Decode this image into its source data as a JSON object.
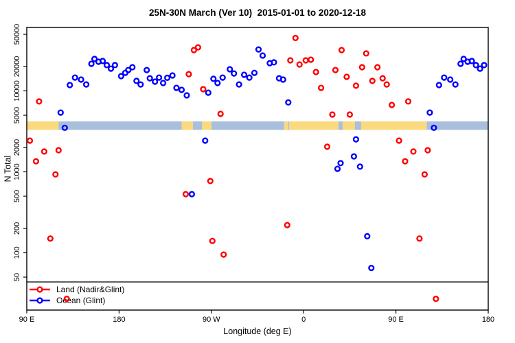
{
  "chart_data": {
    "type": "scatter",
    "title": "25N-30N March (Ver 10)  2015-01-01 to 2020-12-18",
    "xlabel": "Longitude (deg E)",
    "ylabel": "N Total",
    "x_range": [
      90,
      540
    ],
    "y_log": true,
    "y_range": [
      20,
      63000
    ],
    "grid": false,
    "legend_position": "bottom-left-inside",
    "x_ticks": [
      {
        "value": 90,
        "label": "90 E"
      },
      {
        "value": 180,
        "label": "180"
      },
      {
        "value": 270,
        "label": "90 W"
      },
      {
        "value": 360,
        "label": "0"
      },
      {
        "value": 450,
        "label": "90 E"
      },
      {
        "value": 540,
        "label": "180"
      }
    ],
    "y_ticks": [
      {
        "value": 50000,
        "label": "50000"
      },
      {
        "value": 20000,
        "label": "20000"
      },
      {
        "value": 10000,
        "label": "10000"
      },
      {
        "value": 5000,
        "label": "5000"
      },
      {
        "value": 2000,
        "label": "2000"
      },
      {
        "value": 1000,
        "label": "1000"
      },
      {
        "value": 500,
        "label": "500"
      },
      {
        "value": 200,
        "label": "200"
      },
      {
        "value": 100,
        "label": "100"
      },
      {
        "value": 50,
        "label": "50"
      }
    ],
    "series": [
      {
        "name": "Land (Nadir&Glint)",
        "color": "#ff0000",
        "points": [
          [
            93,
            2430
          ],
          [
            99,
            1350
          ],
          [
            102,
            7400
          ],
          [
            107,
            1780
          ],
          [
            113,
            150
          ],
          [
            118,
            930
          ],
          [
            121,
            1850
          ],
          [
            129,
            27
          ],
          [
            245,
            530
          ],
          [
            248,
            16100
          ],
          [
            253,
            31900
          ],
          [
            257,
            34500
          ],
          [
            262,
            10500
          ],
          [
            269,
            770
          ],
          [
            271,
            140
          ],
          [
            279,
            5200
          ],
          [
            282,
            95
          ],
          [
            344,
            220
          ],
          [
            347,
            23800
          ],
          [
            352,
            45000
          ],
          [
            356,
            21200
          ],
          [
            362,
            23800
          ],
          [
            367,
            24300
          ],
          [
            372,
            17100
          ],
          [
            377,
            10900
          ],
          [
            383,
            2040
          ],
          [
            388,
            5100
          ],
          [
            391,
            18100
          ],
          [
            397,
            31900
          ],
          [
            402,
            14900
          ],
          [
            405,
            5100
          ],
          [
            411,
            11600
          ],
          [
            417,
            19600
          ],
          [
            421,
            29000
          ],
          [
            427,
            13300
          ],
          [
            432,
            19600
          ],
          [
            437,
            14300
          ],
          [
            441,
            12000
          ],
          [
            446,
            6700
          ],
          [
            453,
            2430
          ],
          [
            459,
            1350
          ],
          [
            462,
            7400
          ],
          [
            467,
            1780
          ],
          [
            473,
            150
          ],
          [
            478,
            930
          ],
          [
            481,
            1850
          ],
          [
            489,
            27
          ]
        ]
      },
      {
        "name": "Ocean (Glint)",
        "color": "#0000ff",
        "points": [
          [
            123,
            5400
          ],
          [
            127,
            3500
          ],
          [
            132,
            11800
          ],
          [
            137,
            14600
          ],
          [
            143,
            13800
          ],
          [
            148,
            12000
          ],
          [
            153,
            21600
          ],
          [
            156,
            24800
          ],
          [
            160,
            22900
          ],
          [
            164,
            23400
          ],
          [
            168,
            20800
          ],
          [
            172,
            18800
          ],
          [
            176,
            20800
          ],
          [
            182,
            15200
          ],
          [
            186,
            16700
          ],
          [
            189,
            18100
          ],
          [
            193,
            19600
          ],
          [
            197,
            13300
          ],
          [
            201,
            12000
          ],
          [
            207,
            18100
          ],
          [
            210,
            14300
          ],
          [
            215,
            13000
          ],
          [
            219,
            14600
          ],
          [
            223,
            12500
          ],
          [
            227,
            14500
          ],
          [
            232,
            15500
          ],
          [
            236,
            10900
          ],
          [
            241,
            10300
          ],
          [
            246,
            8800
          ],
          [
            251,
            530
          ],
          [
            264,
            2430
          ],
          [
            267,
            9500
          ],
          [
            272,
            14100
          ],
          [
            276,
            12500
          ],
          [
            281,
            14600
          ],
          [
            288,
            18500
          ],
          [
            292,
            16400
          ],
          [
            297,
            12000
          ],
          [
            302,
            15800
          ],
          [
            307,
            14600
          ],
          [
            312,
            16700
          ],
          [
            316,
            32500
          ],
          [
            320,
            27300
          ],
          [
            327,
            22000
          ],
          [
            331,
            22500
          ],
          [
            336,
            14300
          ],
          [
            340,
            13800
          ],
          [
            345,
            7200
          ],
          [
            393,
            1090
          ],
          [
            396,
            1280
          ],
          [
            409,
            1550
          ],
          [
            411,
            2520
          ],
          [
            415,
            1160
          ],
          [
            422,
            160
          ],
          [
            426,
            65
          ],
          [
            483,
            5400
          ],
          [
            487,
            3500
          ],
          [
            492,
            11800
          ],
          [
            497,
            14600
          ],
          [
            503,
            13800
          ],
          [
            508,
            12000
          ],
          [
            513,
            21600
          ],
          [
            516,
            24800
          ],
          [
            520,
            22900
          ],
          [
            524,
            23400
          ],
          [
            528,
            20800
          ],
          [
            532,
            18800
          ],
          [
            536,
            20800
          ]
        ]
      }
    ],
    "band": {
      "description": "land/ocean surface strip",
      "top_value": 4200,
      "bottom_value": 3300,
      "land_color": "#fbd97f",
      "ocean_color": "#a9bfdc",
      "segments": [
        {
          "from": 90,
          "to": 121,
          "type": "land"
        },
        {
          "from": 121,
          "to": 241,
          "type": "ocean"
        },
        {
          "from": 241,
          "to": 252,
          "type": "land"
        },
        {
          "from": 252,
          "to": 261,
          "type": "ocean"
        },
        {
          "from": 261,
          "to": 270,
          "type": "land"
        },
        {
          "from": 270,
          "to": 346,
          "type": "ocean"
        },
        {
          "from": 346,
          "to": 480,
          "type": "land"
        },
        {
          "from": 480,
          "to": 540,
          "type": "ocean"
        },
        {
          "from": 341,
          "to": 345,
          "type": "land"
        },
        {
          "from": 394,
          "to": 398,
          "type": "ocean"
        },
        {
          "from": 410,
          "to": 416,
          "type": "ocean"
        }
      ]
    }
  }
}
